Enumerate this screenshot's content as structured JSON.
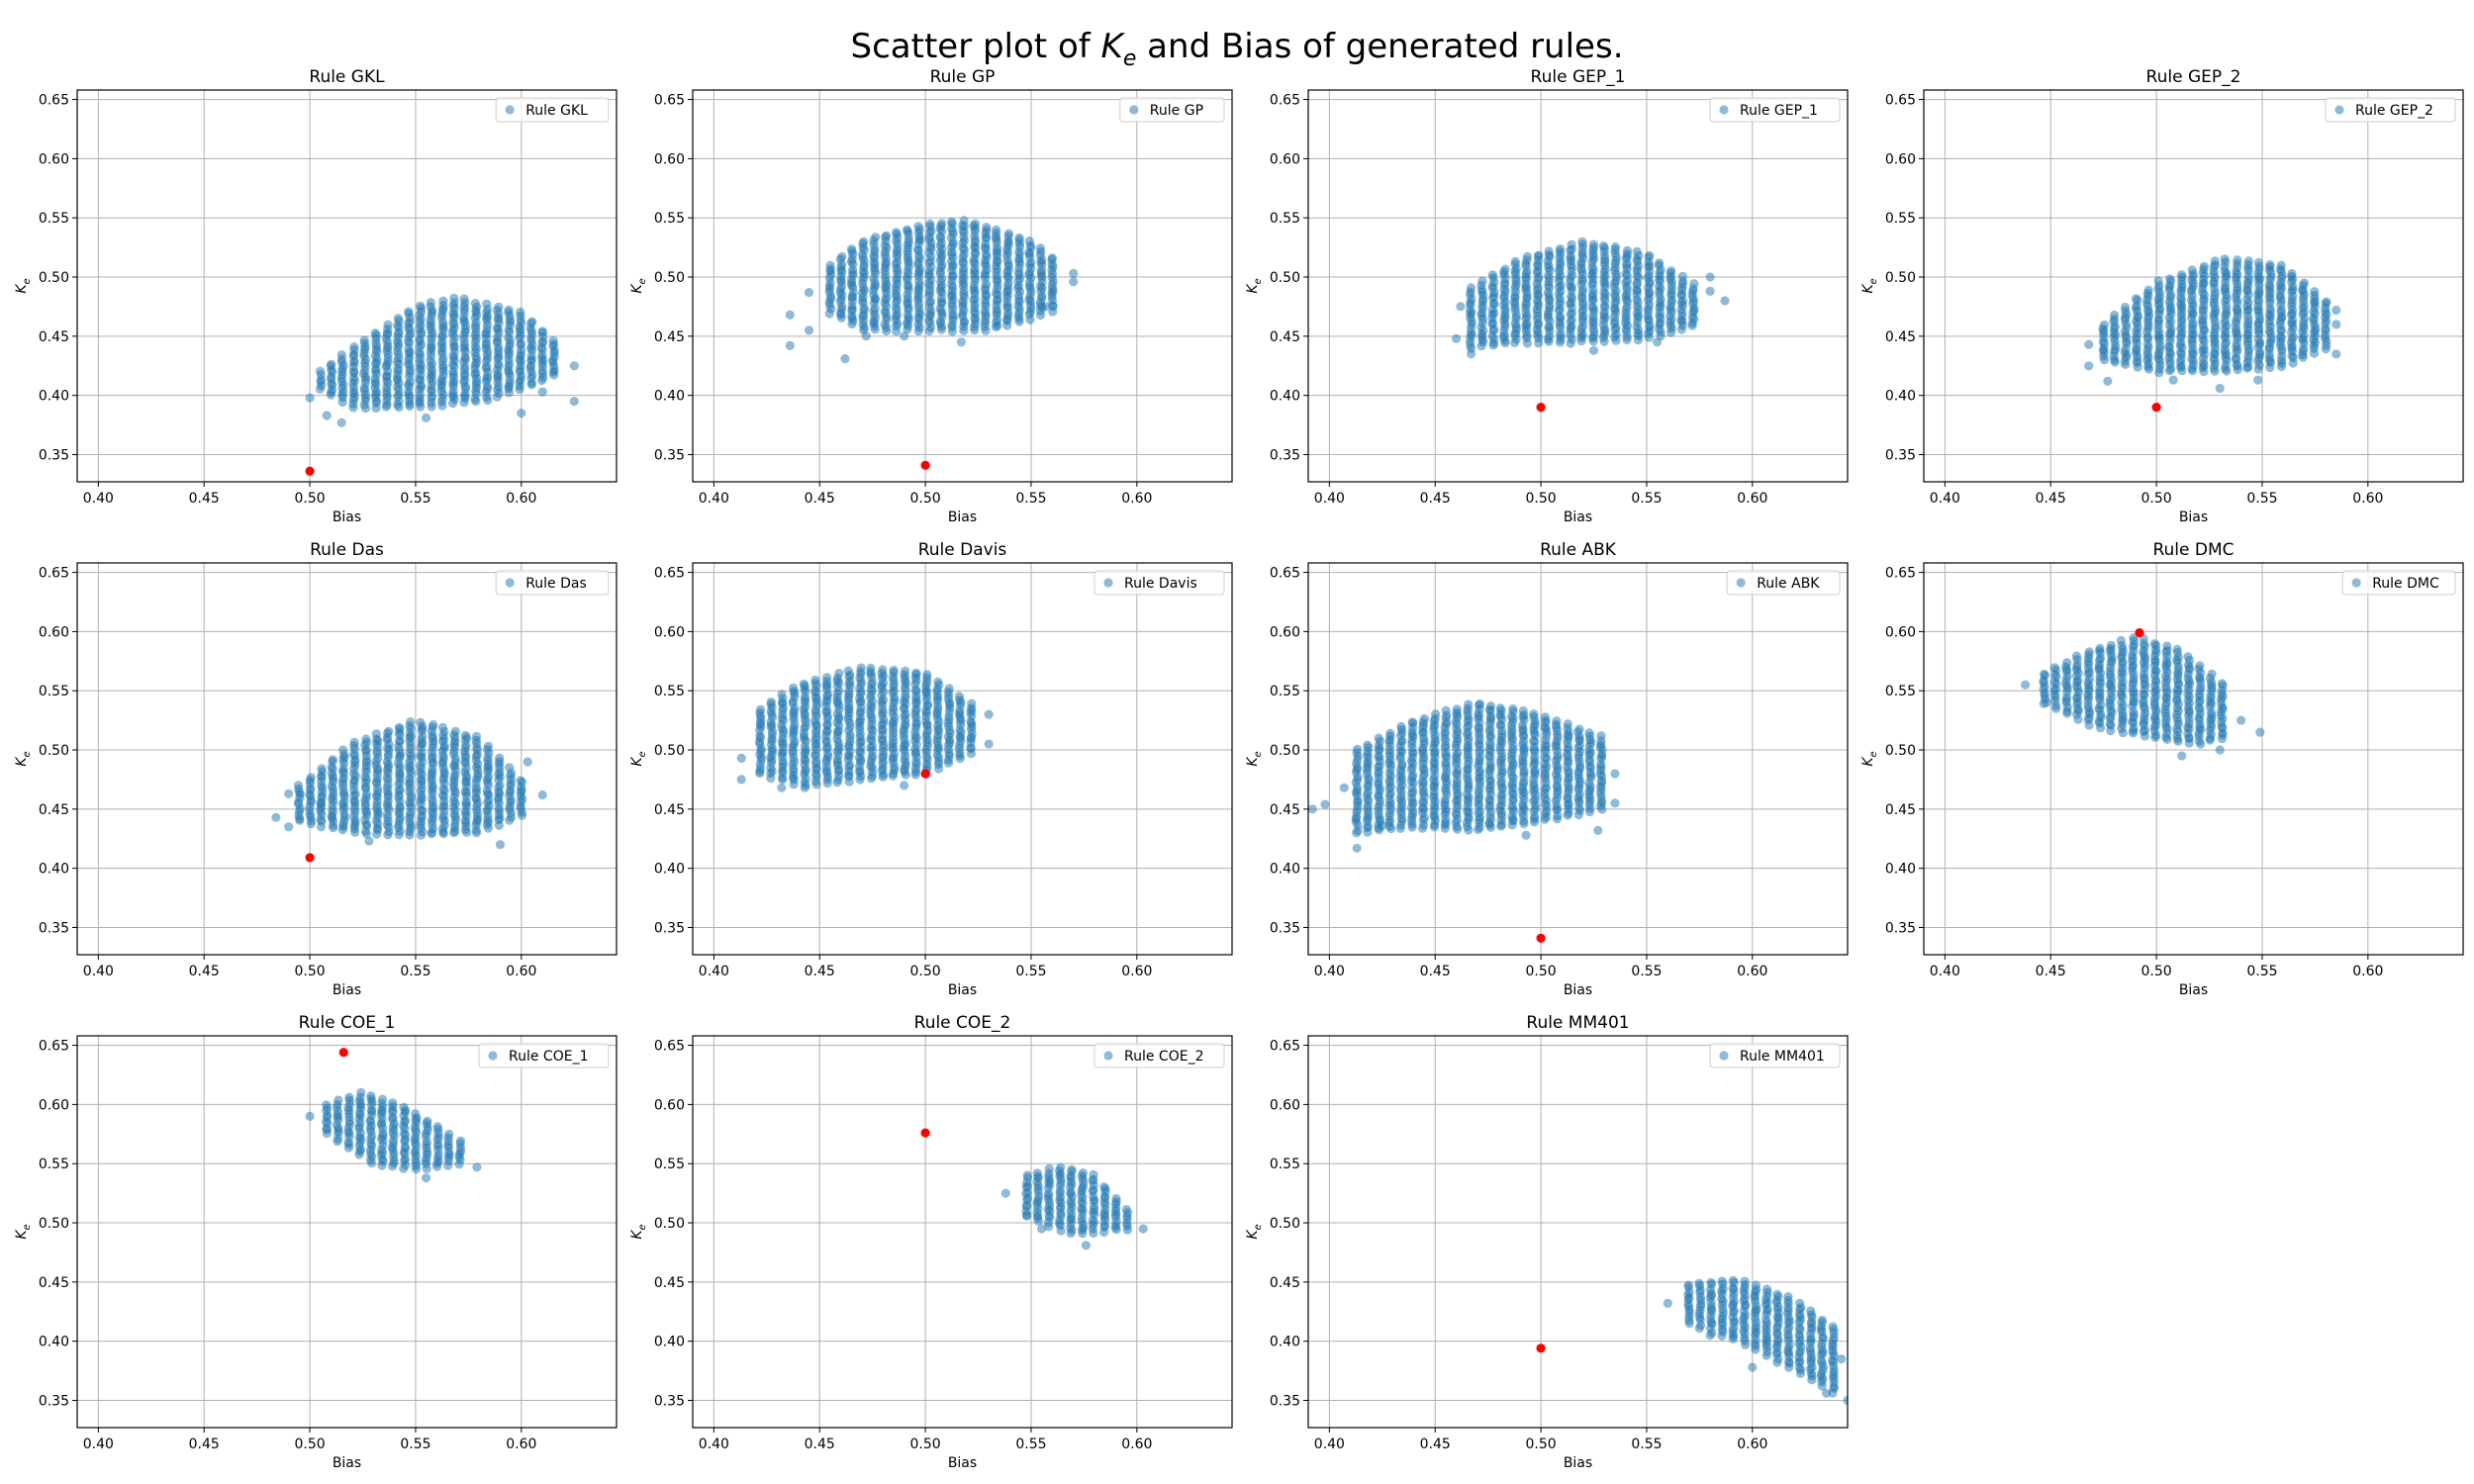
{
  "figure": {
    "title_prefix": "Scatter plot of ",
    "title_symbol": "K",
    "title_subscript": "e",
    "title_suffix": " and Bias of generated rules."
  },
  "colors": {
    "scatter": "#1f77b4",
    "highlight": "#ff0000",
    "grid": "#b0b0b0",
    "axes": "#000000"
  },
  "chart_data": [
    {
      "type": "scatter",
      "title": "Rule GKL",
      "legend": "Rule GKL",
      "legend_loc": "upper right",
      "xlabel": "Bias",
      "ylabel": "K_e",
      "xlim": [
        0.39,
        0.645
      ],
      "ylim": [
        0.327,
        0.658
      ],
      "xticks": [
        "0.40",
        "0.45",
        "0.50",
        "0.55",
        "0.60"
      ],
      "yticks": [
        "0.35",
        "0.40",
        "0.45",
        "0.50",
        "0.55",
        "0.60",
        "0.65"
      ],
      "grid": true,
      "cluster": {
        "bias": [
          0.505,
          0.62
        ],
        "ke_low": [
          [
            0.505,
            0.405
          ],
          [
            0.52,
            0.39
          ],
          [
            0.55,
            0.39
          ],
          [
            0.58,
            0.395
          ],
          [
            0.6,
            0.405
          ],
          [
            0.62,
            0.42
          ]
        ],
        "ke_high": [
          [
            0.505,
            0.42
          ],
          [
            0.52,
            0.44
          ],
          [
            0.55,
            0.475
          ],
          [
            0.57,
            0.482
          ],
          [
            0.6,
            0.47
          ],
          [
            0.62,
            0.44
          ]
        ]
      },
      "outliers": [
        [
          0.5,
          0.398
        ],
        [
          0.508,
          0.383
        ],
        [
          0.515,
          0.377
        ],
        [
          0.555,
          0.381
        ],
        [
          0.6,
          0.385
        ],
        [
          0.61,
          0.403
        ],
        [
          0.625,
          0.395
        ],
        [
          0.625,
          0.425
        ]
      ],
      "highlight": [
        0.5,
        0.336
      ]
    },
    {
      "type": "scatter",
      "title": "Rule GP",
      "legend": "Rule GP",
      "legend_loc": "upper right",
      "xlabel": "Bias",
      "ylabel": "K_e",
      "xlim": [
        0.39,
        0.645
      ],
      "ylim": [
        0.327,
        0.658
      ],
      "xticks": [
        "0.40",
        "0.45",
        "0.50",
        "0.55",
        "0.60"
      ],
      "yticks": [
        "0.35",
        "0.40",
        "0.45",
        "0.50",
        "0.55",
        "0.60",
        "0.65"
      ],
      "grid": true,
      "cluster": {
        "bias": [
          0.455,
          0.565
        ],
        "ke_low": [
          [
            0.455,
            0.47
          ],
          [
            0.47,
            0.455
          ],
          [
            0.5,
            0.455
          ],
          [
            0.53,
            0.455
          ],
          [
            0.55,
            0.465
          ],
          [
            0.565,
            0.475
          ]
        ],
        "ke_high": [
          [
            0.455,
            0.51
          ],
          [
            0.47,
            0.53
          ],
          [
            0.5,
            0.545
          ],
          [
            0.52,
            0.548
          ],
          [
            0.55,
            0.53
          ],
          [
            0.565,
            0.51
          ]
        ]
      },
      "outliers": [
        [
          0.436,
          0.442
        ],
        [
          0.436,
          0.468
        ],
        [
          0.445,
          0.455
        ],
        [
          0.445,
          0.487
        ],
        [
          0.462,
          0.431
        ],
        [
          0.472,
          0.45
        ],
        [
          0.49,
          0.45
        ],
        [
          0.517,
          0.445
        ],
        [
          0.557,
          0.475
        ],
        [
          0.57,
          0.496
        ],
        [
          0.57,
          0.503
        ]
      ],
      "highlight": [
        0.5,
        0.341
      ]
    },
    {
      "type": "scatter",
      "title": "Rule GEP_1",
      "legend": "Rule GEP_1",
      "legend_loc": "upper right",
      "xlabel": "Bias",
      "ylabel": "K_e",
      "xlim": [
        0.39,
        0.645
      ],
      "ylim": [
        0.327,
        0.658
      ],
      "xticks": [
        "0.40",
        "0.45",
        "0.50",
        "0.55",
        "0.60"
      ],
      "yticks": [
        "0.35",
        "0.40",
        "0.45",
        "0.50",
        "0.55",
        "0.60",
        "0.65"
      ],
      "grid": true,
      "cluster": {
        "bias": [
          0.467,
          0.575
        ],
        "ke_low": [
          [
            0.467,
            0.44
          ],
          [
            0.49,
            0.445
          ],
          [
            0.52,
            0.445
          ],
          [
            0.55,
            0.448
          ],
          [
            0.575,
            0.46
          ]
        ],
        "ke_high": [
          [
            0.467,
            0.49
          ],
          [
            0.49,
            0.515
          ],
          [
            0.52,
            0.53
          ],
          [
            0.55,
            0.52
          ],
          [
            0.575,
            0.49
          ]
        ]
      },
      "outliers": [
        [
          0.46,
          0.448
        ],
        [
          0.462,
          0.475
        ],
        [
          0.467,
          0.435
        ],
        [
          0.525,
          0.438
        ],
        [
          0.555,
          0.445
        ],
        [
          0.58,
          0.488
        ],
        [
          0.58,
          0.5
        ],
        [
          0.587,
          0.48
        ]
      ],
      "highlight": [
        0.5,
        0.39
      ]
    },
    {
      "type": "scatter",
      "title": "Rule GEP_2",
      "legend": "Rule GEP_2",
      "legend_loc": "upper right",
      "xlabel": "Bias",
      "ylabel": "K_e",
      "xlim": [
        0.39,
        0.645
      ],
      "ylim": [
        0.327,
        0.658
      ],
      "xticks": [
        "0.40",
        "0.45",
        "0.50",
        "0.55",
        "0.60"
      ],
      "yticks": [
        "0.35",
        "0.40",
        "0.45",
        "0.50",
        "0.55",
        "0.60",
        "0.65"
      ],
      "grid": true,
      "cluster": {
        "bias": [
          0.475,
          0.58
        ],
        "ke_low": [
          [
            0.475,
            0.43
          ],
          [
            0.5,
            0.42
          ],
          [
            0.53,
            0.42
          ],
          [
            0.56,
            0.425
          ],
          [
            0.58,
            0.44
          ]
        ],
        "ke_high": [
          [
            0.475,
            0.46
          ],
          [
            0.5,
            0.495
          ],
          [
            0.53,
            0.515
          ],
          [
            0.56,
            0.51
          ],
          [
            0.58,
            0.48
          ]
        ]
      },
      "outliers": [
        [
          0.468,
          0.425
        ],
        [
          0.468,
          0.443
        ],
        [
          0.477,
          0.412
        ],
        [
          0.508,
          0.413
        ],
        [
          0.53,
          0.406
        ],
        [
          0.548,
          0.413
        ],
        [
          0.585,
          0.435
        ],
        [
          0.585,
          0.46
        ],
        [
          0.585,
          0.472
        ]
      ],
      "highlight": [
        0.5,
        0.39
      ]
    },
    {
      "type": "scatter",
      "title": "Rule Das",
      "legend": "Rule Das",
      "legend_loc": "upper right",
      "xlabel": "Bias",
      "ylabel": "K_e",
      "xlim": [
        0.39,
        0.645
      ],
      "ylim": [
        0.327,
        0.658
      ],
      "xticks": [
        "0.40",
        "0.45",
        "0.50",
        "0.55",
        "0.60"
      ],
      "yticks": [
        "0.35",
        "0.40",
        "0.45",
        "0.50",
        "0.55",
        "0.60",
        "0.65"
      ],
      "grid": true,
      "cluster": {
        "bias": [
          0.495,
          0.6
        ],
        "ke_low": [
          [
            0.495,
            0.44
          ],
          [
            0.52,
            0.43
          ],
          [
            0.55,
            0.428
          ],
          [
            0.58,
            0.43
          ],
          [
            0.6,
            0.445
          ]
        ],
        "ke_high": [
          [
            0.495,
            0.47
          ],
          [
            0.52,
            0.505
          ],
          [
            0.55,
            0.525
          ],
          [
            0.58,
            0.51
          ],
          [
            0.6,
            0.475
          ]
        ]
      },
      "outliers": [
        [
          0.484,
          0.443
        ],
        [
          0.49,
          0.435
        ],
        [
          0.49,
          0.463
        ],
        [
          0.505,
          0.455
        ],
        [
          0.528,
          0.423
        ],
        [
          0.59,
          0.42
        ],
        [
          0.603,
          0.49
        ],
        [
          0.61,
          0.462
        ]
      ],
      "highlight": [
        0.5,
        0.409
      ]
    },
    {
      "type": "scatter",
      "title": "Rule Davis",
      "legend": "Rule Davis",
      "legend_loc": "upper right",
      "xlabel": "Bias",
      "ylabel": "K_e",
      "xlim": [
        0.39,
        0.645
      ],
      "ylim": [
        0.327,
        0.658
      ],
      "xticks": [
        "0.40",
        "0.45",
        "0.50",
        "0.55",
        "0.60"
      ],
      "yticks": [
        "0.35",
        "0.40",
        "0.45",
        "0.50",
        "0.55",
        "0.60",
        "0.65"
      ],
      "grid": true,
      "cluster": {
        "bias": [
          0.422,
          0.525
        ],
        "ke_low": [
          [
            0.422,
            0.48
          ],
          [
            0.44,
            0.47
          ],
          [
            0.47,
            0.475
          ],
          [
            0.5,
            0.48
          ],
          [
            0.525,
            0.5
          ]
        ],
        "ke_high": [
          [
            0.422,
            0.535
          ],
          [
            0.44,
            0.555
          ],
          [
            0.47,
            0.57
          ],
          [
            0.5,
            0.565
          ],
          [
            0.525,
            0.535
          ]
        ]
      },
      "outliers": [
        [
          0.413,
          0.475
        ],
        [
          0.413,
          0.493
        ],
        [
          0.432,
          0.468
        ],
        [
          0.443,
          0.468
        ],
        [
          0.49,
          0.47
        ],
        [
          0.53,
          0.505
        ],
        [
          0.53,
          0.53
        ]
      ],
      "highlight": [
        0.5,
        0.48
      ]
    },
    {
      "type": "scatter",
      "title": "Rule ABK",
      "legend": "Rule ABK",
      "legend_loc": "upper right",
      "xlabel": "Bias",
      "ylabel": "K_e",
      "xlim": [
        0.39,
        0.645
      ],
      "ylim": [
        0.327,
        0.658
      ],
      "xticks": [
        "0.40",
        "0.45",
        "0.50",
        "0.55",
        "0.60"
      ],
      "yticks": [
        "0.35",
        "0.40",
        "0.45",
        "0.50",
        "0.55",
        "0.60",
        "0.65"
      ],
      "grid": true,
      "cluster": {
        "bias": [
          0.413,
          0.53
        ],
        "ke_low": [
          [
            0.413,
            0.43
          ],
          [
            0.44,
            0.435
          ],
          [
            0.47,
            0.432
          ],
          [
            0.5,
            0.44
          ],
          [
            0.53,
            0.45
          ]
        ],
        "ke_high": [
          [
            0.413,
            0.5
          ],
          [
            0.44,
            0.525
          ],
          [
            0.47,
            0.54
          ],
          [
            0.5,
            0.53
          ],
          [
            0.53,
            0.51
          ]
        ]
      },
      "outliers": [
        [
          0.392,
          0.45
        ],
        [
          0.398,
          0.454
        ],
        [
          0.407,
          0.468
        ],
        [
          0.413,
          0.417
        ],
        [
          0.425,
          0.436
        ],
        [
          0.493,
          0.428
        ],
        [
          0.527,
          0.432
        ],
        [
          0.535,
          0.455
        ],
        [
          0.535,
          0.48
        ]
      ],
      "highlight": [
        0.5,
        0.341
      ]
    },
    {
      "type": "scatter",
      "title": "Rule DMC",
      "legend": "Rule DMC",
      "legend_loc": "upper right",
      "xlabel": "Bias",
      "ylabel": "K_e",
      "xlim": [
        0.39,
        0.645
      ],
      "ylim": [
        0.327,
        0.658
      ],
      "xticks": [
        "0.40",
        "0.45",
        "0.50",
        "0.55",
        "0.60"
      ],
      "yticks": [
        "0.35",
        "0.40",
        "0.45",
        "0.50",
        "0.55",
        "0.60",
        "0.65"
      ],
      "grid": true,
      "cluster": {
        "bias": [
          0.447,
          0.532
        ],
        "ke_low": [
          [
            0.447,
            0.54
          ],
          [
            0.47,
            0.52
          ],
          [
            0.5,
            0.51
          ],
          [
            0.52,
            0.505
          ],
          [
            0.532,
            0.51
          ]
        ],
        "ke_high": [
          [
            0.447,
            0.565
          ],
          [
            0.47,
            0.585
          ],
          [
            0.49,
            0.595
          ],
          [
            0.51,
            0.585
          ],
          [
            0.532,
            0.555
          ]
        ]
      },
      "outliers": [
        [
          0.438,
          0.555
        ],
        [
          0.448,
          0.54
        ],
        [
          0.512,
          0.495
        ],
        [
          0.53,
          0.5
        ],
        [
          0.54,
          0.525
        ],
        [
          0.549,
          0.515
        ]
      ],
      "highlight": [
        0.492,
        0.599
      ]
    },
    {
      "type": "scatter",
      "title": "Rule COE_1",
      "legend": "Rule COE_1",
      "legend_loc": "upper right",
      "xlabel": "Bias",
      "ylabel": "K_e",
      "xlim": [
        0.39,
        0.645
      ],
      "ylim": [
        0.327,
        0.658
      ],
      "xticks": [
        "0.40",
        "0.45",
        "0.50",
        "0.55",
        "0.60"
      ],
      "yticks": [
        "0.35",
        "0.40",
        "0.45",
        "0.50",
        "0.55",
        "0.60",
        "0.65"
      ],
      "grid": true,
      "cluster": {
        "bias": [
          0.508,
          0.572
        ],
        "ke_low": [
          [
            0.508,
            0.575
          ],
          [
            0.53,
            0.55
          ],
          [
            0.55,
            0.545
          ],
          [
            0.572,
            0.55
          ]
        ],
        "ke_high": [
          [
            0.508,
            0.6
          ],
          [
            0.525,
            0.61
          ],
          [
            0.545,
            0.598
          ],
          [
            0.572,
            0.568
          ]
        ]
      },
      "outliers": [
        [
          0.5,
          0.59
        ],
        [
          0.555,
          0.538
        ],
        [
          0.579,
          0.547
        ]
      ],
      "highlight": [
        0.516,
        0.644
      ]
    },
    {
      "type": "scatter",
      "title": "Rule COE_2",
      "legend": "Rule COE_2",
      "legend_loc": "upper right",
      "xlabel": "Bias",
      "ylabel": "K_e",
      "xlim": [
        0.39,
        0.645
      ],
      "ylim": [
        0.327,
        0.658
      ],
      "xticks": [
        "0.40",
        "0.45",
        "0.50",
        "0.55",
        "0.60"
      ],
      "yticks": [
        "0.35",
        "0.40",
        "0.45",
        "0.50",
        "0.55",
        "0.60",
        "0.65"
      ],
      "grid": true,
      "cluster": {
        "bias": [
          0.548,
          0.596
        ],
        "ke_low": [
          [
            0.548,
            0.505
          ],
          [
            0.57,
            0.49
          ],
          [
            0.596,
            0.495
          ]
        ],
        "ke_high": [
          [
            0.548,
            0.54
          ],
          [
            0.565,
            0.548
          ],
          [
            0.58,
            0.54
          ],
          [
            0.596,
            0.51
          ]
        ]
      },
      "outliers": [
        [
          0.538,
          0.525
        ],
        [
          0.555,
          0.495
        ],
        [
          0.576,
          0.481
        ],
        [
          0.603,
          0.495
        ]
      ],
      "highlight": [
        0.5,
        0.576
      ]
    },
    {
      "type": "scatter",
      "title": "Rule MM401",
      "legend": "Rule MM401",
      "legend_loc": "upper right",
      "xlabel": "Bias",
      "ylabel": "K_e",
      "xlim": [
        0.39,
        0.645
      ],
      "ylim": [
        0.327,
        0.658
      ],
      "xticks": [
        "0.40",
        "0.45",
        "0.50",
        "0.55",
        "0.60"
      ],
      "yticks": [
        "0.35",
        "0.40",
        "0.45",
        "0.50",
        "0.55",
        "0.60",
        "0.65"
      ],
      "grid": true,
      "cluster": {
        "bias": [
          0.57,
          0.64
        ],
        "ke_low": [
          [
            0.57,
            0.415
          ],
          [
            0.6,
            0.395
          ],
          [
            0.62,
            0.375
          ],
          [
            0.64,
            0.355
          ]
        ],
        "ke_high": [
          [
            0.57,
            0.448
          ],
          [
            0.595,
            0.452
          ],
          [
            0.62,
            0.435
          ],
          [
            0.64,
            0.41
          ]
        ]
      },
      "outliers": [
        [
          0.56,
          0.432
        ],
        [
          0.58,
          0.405
        ],
        [
          0.6,
          0.378
        ],
        [
          0.642,
          0.385
        ],
        [
          0.645,
          0.35
        ],
        [
          0.635,
          0.356
        ]
      ],
      "highlight": [
        0.5,
        0.394
      ]
    }
  ]
}
